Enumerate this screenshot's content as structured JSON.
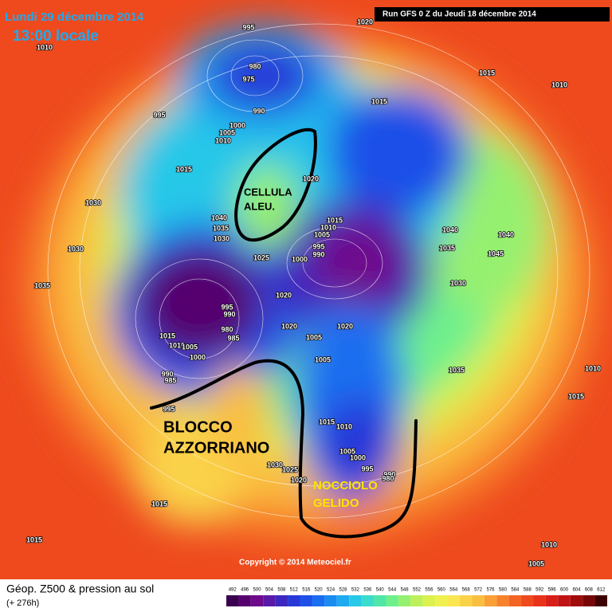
{
  "header": {
    "date": "Lundi 29 décembre 2014",
    "time": "13:00 locale",
    "run": "Run GFS 0 Z du Jeudi 18 décembre 2014"
  },
  "annotations": {
    "cell_1": "CELLULA",
    "cell_2": "ALEU.",
    "block_1": "BLOCCO",
    "block_2": "AZZORRIANO",
    "core_1": "NOCCIOLO",
    "core_2": "GELIDO"
  },
  "pressure_labels": [
    "995",
    "1020",
    "1010",
    "980",
    "975",
    "1015",
    "1010",
    "1015",
    "995",
    "990",
    "1000",
    "1005",
    "1010",
    "1015",
    "1020",
    "1030",
    "1015",
    "1010",
    "1005",
    "1040",
    "1035",
    "1030",
    "995",
    "990",
    "1000",
    "1025",
    "1040",
    "1040",
    "1035",
    "1045",
    "1030",
    "1035",
    "1030",
    "1020",
    "995",
    "990",
    "980",
    "985",
    "1020",
    "1020",
    "1005",
    "1015",
    "1010",
    "1005",
    "1000",
    "1005",
    "1035",
    "1010",
    "990",
    "985",
    "995",
    "1015",
    "1015",
    "1010",
    "1005",
    "1000",
    "995",
    "990",
    "980",
    "1030",
    "1025",
    "1020",
    "1015",
    "1015",
    "1010",
    "1005"
  ],
  "footer": {
    "title": "Géop. Z500 & pression au sol",
    "lead": "(+ 276h)",
    "copyright": "Copyright © 2014 Meteociel.fr"
  },
  "legend": {
    "values": [
      492,
      496,
      500,
      504,
      508,
      512,
      516,
      520,
      524,
      528,
      532,
      536,
      540,
      544,
      548,
      552,
      556,
      560,
      564,
      568,
      572,
      576,
      580,
      584,
      588,
      592,
      596,
      600,
      604,
      608,
      612
    ],
    "colors": [
      "#3a0050",
      "#55006e",
      "#6e0a8c",
      "#5a1aa8",
      "#3c28c0",
      "#2838d8",
      "#1e50e8",
      "#1a6ef0",
      "#1a8cf0",
      "#1eaaf0",
      "#28c8e8",
      "#3cdccc",
      "#50e6a8",
      "#6ef08c",
      "#96f070",
      "#bef05a",
      "#dcf050",
      "#f0f050",
      "#fae650",
      "#fad24a",
      "#fabe40",
      "#faa036",
      "#f8822c",
      "#f46424",
      "#ee4a1e",
      "#e8321a",
      "#d82018",
      "#c01414",
      "#a00c0c",
      "#780606",
      "#3c0000"
    ]
  }
}
